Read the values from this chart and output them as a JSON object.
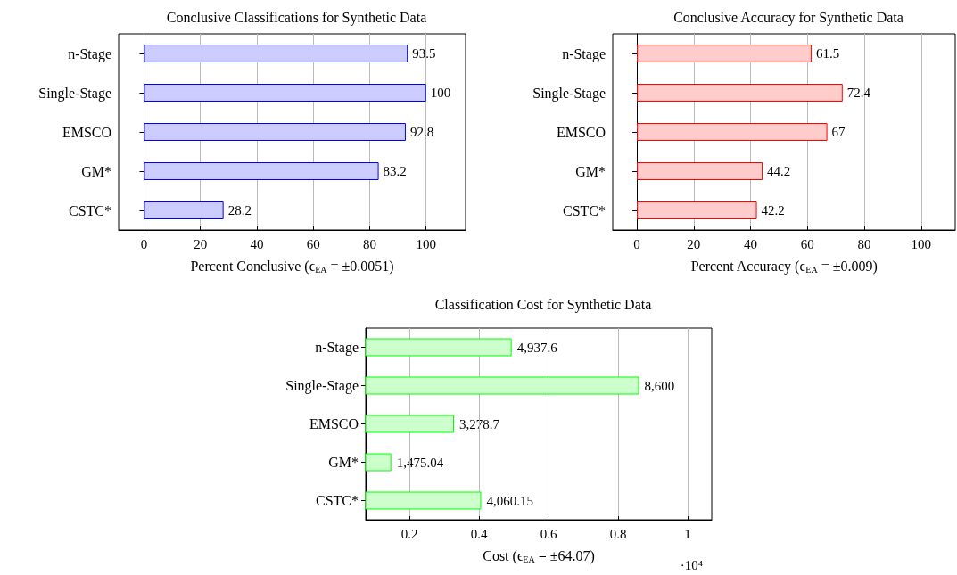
{
  "chart_data": [
    {
      "type": "bar",
      "orientation": "horizontal",
      "title": "Conclusive Classifications for Synthetic Data",
      "xlabel": "Percent Conclusive (ϵ$_{EA}$ = ±0.0051)",
      "categories": [
        "n-Stage",
        "Single-Stage",
        "EMSCO",
        "GM*",
        "CSTC*"
      ],
      "values": [
        93.5,
        100,
        92.8,
        83.2,
        28.2
      ],
      "color": "#ccccff",
      "xlim": [
        -9,
        114
      ],
      "xticks": [
        0,
        20,
        40,
        60,
        80,
        100
      ],
      "grid": "x",
      "data_labels": true
    },
    {
      "type": "bar",
      "orientation": "horizontal",
      "title": "Conclusive Accuracy for Synthetic Data",
      "xlabel": "Percent Accuracy (ϵ$_{EA}$ = ±0.009)",
      "categories": [
        "n-Stage",
        "Single-Stage",
        "EMSCO",
        "GM*",
        "CSTC*"
      ],
      "values": [
        61.5,
        72.4,
        67,
        44.2,
        42.2
      ],
      "color": "#ffcccc",
      "xlim": [
        -8.5,
        112
      ],
      "xticks": [
        0,
        20,
        40,
        60,
        80,
        100
      ],
      "grid": "x",
      "data_labels": true
    },
    {
      "type": "bar",
      "orientation": "horizontal",
      "title": "Classification Cost for Synthetic Data",
      "xlabel": "Cost (ϵ$_{EA}$ = ±64.07)",
      "categories": [
        "n-Stage",
        "Single-Stage",
        "EMSCO",
        "GM*",
        "CSTC*"
      ],
      "values": [
        0.49376,
        0.86,
        0.32787,
        0.147504,
        0.406015
      ],
      "color": "#ccffcc",
      "xlim": [
        0.074,
        1.069
      ],
      "xticks": [
        0.2,
        0.4,
        0.6,
        0.8,
        1
      ],
      "grid": "x",
      "annotations": [
        "·10⁴",
        {
          "text": "4,937.6",
          "x": 0.49376,
          "y": "n-Stage"
        },
        {
          "text": "8,600",
          "x": 0.86,
          "y": "Single-Stage"
        },
        {
          "text": "3,278.7",
          "x": 0.32787,
          "y": "EMSCO"
        },
        {
          "text": "1,475.04",
          "x": 0.147504,
          "y": "GM*"
        },
        {
          "text": "4,060.15",
          "x": 0.406015,
          "y": "CSTC*"
        }
      ]
    }
  ]
}
